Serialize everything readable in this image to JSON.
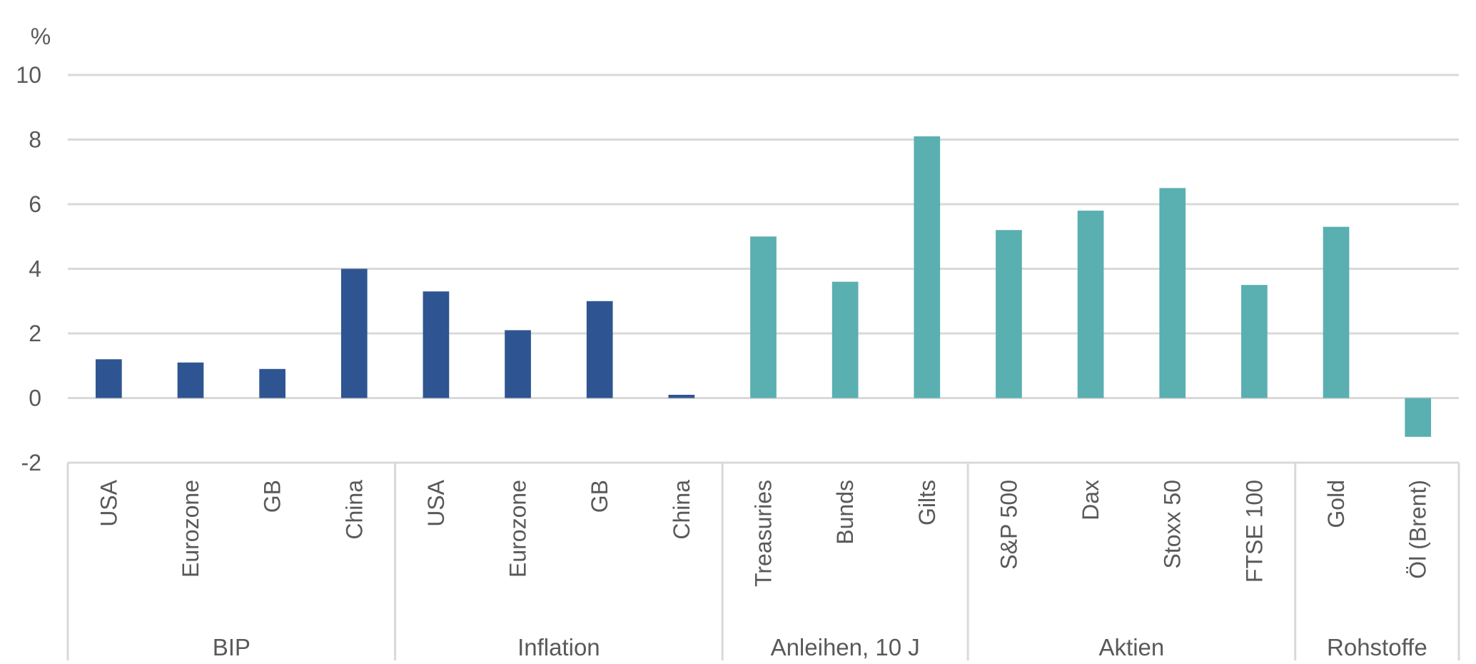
{
  "chart_data": {
    "type": "bar",
    "ylabel": "%",
    "ylim": [
      -2,
      10
    ],
    "yticks": [
      "-2",
      "0",
      "2",
      "4",
      "6",
      "8",
      "10"
    ],
    "grid": true,
    "colors": {
      "macro": "#2E5591",
      "markets": "#5AAFB1",
      "grid": "#D9D9D9",
      "text": "#595959"
    },
    "groups": [
      {
        "name": "BIP",
        "color_key": "macro",
        "categories": [
          "USA",
          "Eurozone",
          "GB",
          "China"
        ],
        "values": [
          1.2,
          1.1,
          0.9,
          4.0
        ]
      },
      {
        "name": "Inflation",
        "color_key": "macro",
        "categories": [
          "USA",
          "Eurozone",
          "GB",
          "China"
        ],
        "values": [
          3.3,
          2.1,
          3.0,
          0.1
        ]
      },
      {
        "name": "Anleihen, 10 J",
        "color_key": "markets",
        "categories": [
          "Treasuries",
          "Bunds",
          "Gilts"
        ],
        "values": [
          5.0,
          3.6,
          8.1
        ]
      },
      {
        "name": "Aktien",
        "color_key": "markets",
        "categories": [
          "S&P 500",
          "Dax",
          "Stoxx 50",
          "FTSE 100"
        ],
        "values": [
          5.2,
          5.8,
          6.5,
          3.5
        ]
      },
      {
        "name": "Rohstoffe",
        "color_key": "markets",
        "categories": [
          "Gold",
          "Öl (Brent)"
        ],
        "values": [
          5.3,
          -1.2
        ]
      }
    ]
  }
}
